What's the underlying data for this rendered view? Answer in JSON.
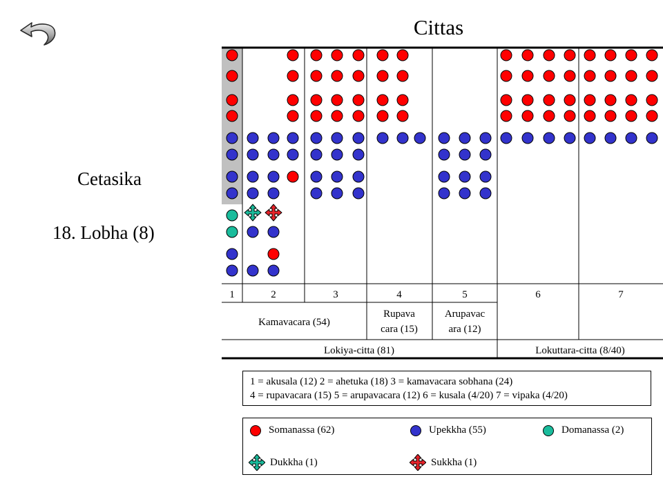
{
  "title": "Cittas",
  "side": {
    "heading": "Cetasika",
    "subheading": "18. Lobha (8)"
  },
  "icons": {
    "back": "back-arrow-icon",
    "dukkha": "four-way-arrow-icon",
    "sukkha": "four-way-arrow-icon"
  },
  "colors": {
    "somanassa": "#ff0000",
    "upekkha": "#3333cc",
    "domanassa": "#1abc9c",
    "dukkha": "#1abc9c",
    "sukkha": "#e8232a",
    "highlight": "#c0c0c0"
  },
  "table": {
    "columns": [
      "1",
      "2",
      "3",
      "4",
      "5",
      "6",
      "7"
    ],
    "groups": [
      {
        "label": "Kamavacara (54)"
      },
      {
        "label": "Rupava cara (15)"
      },
      {
        "label": "Arupavac ara (12)"
      }
    ],
    "totals": [
      {
        "label": "Lokiya-citta (81)"
      },
      {
        "label": "Lokuttara-citta (8/40)"
      }
    ]
  },
  "key_lines": [
    "1 = akusala (12) 2 = ahetuka (18) 3 = kamavacara sobhana (24)",
    "4 = rupavacara (15) 5 = arupavacara (12) 6 = kusala (4/20) 7 = vipaka (4/20)"
  ],
  "legend": [
    {
      "label": "Somanassa (62)",
      "shape": "dot",
      "color": "#ff0000"
    },
    {
      "label": "Upekkha (55)",
      "shape": "dot",
      "color": "#3333cc"
    },
    {
      "label": "Domanassa (2)",
      "shape": "dot",
      "color": "#1abc9c"
    },
    {
      "label": "Dukkha (1)",
      "shape": "cross",
      "color": "#1abc9c"
    },
    {
      "label": "Sukkha (1)",
      "shape": "cross",
      "color": "#e8232a"
    }
  ]
}
